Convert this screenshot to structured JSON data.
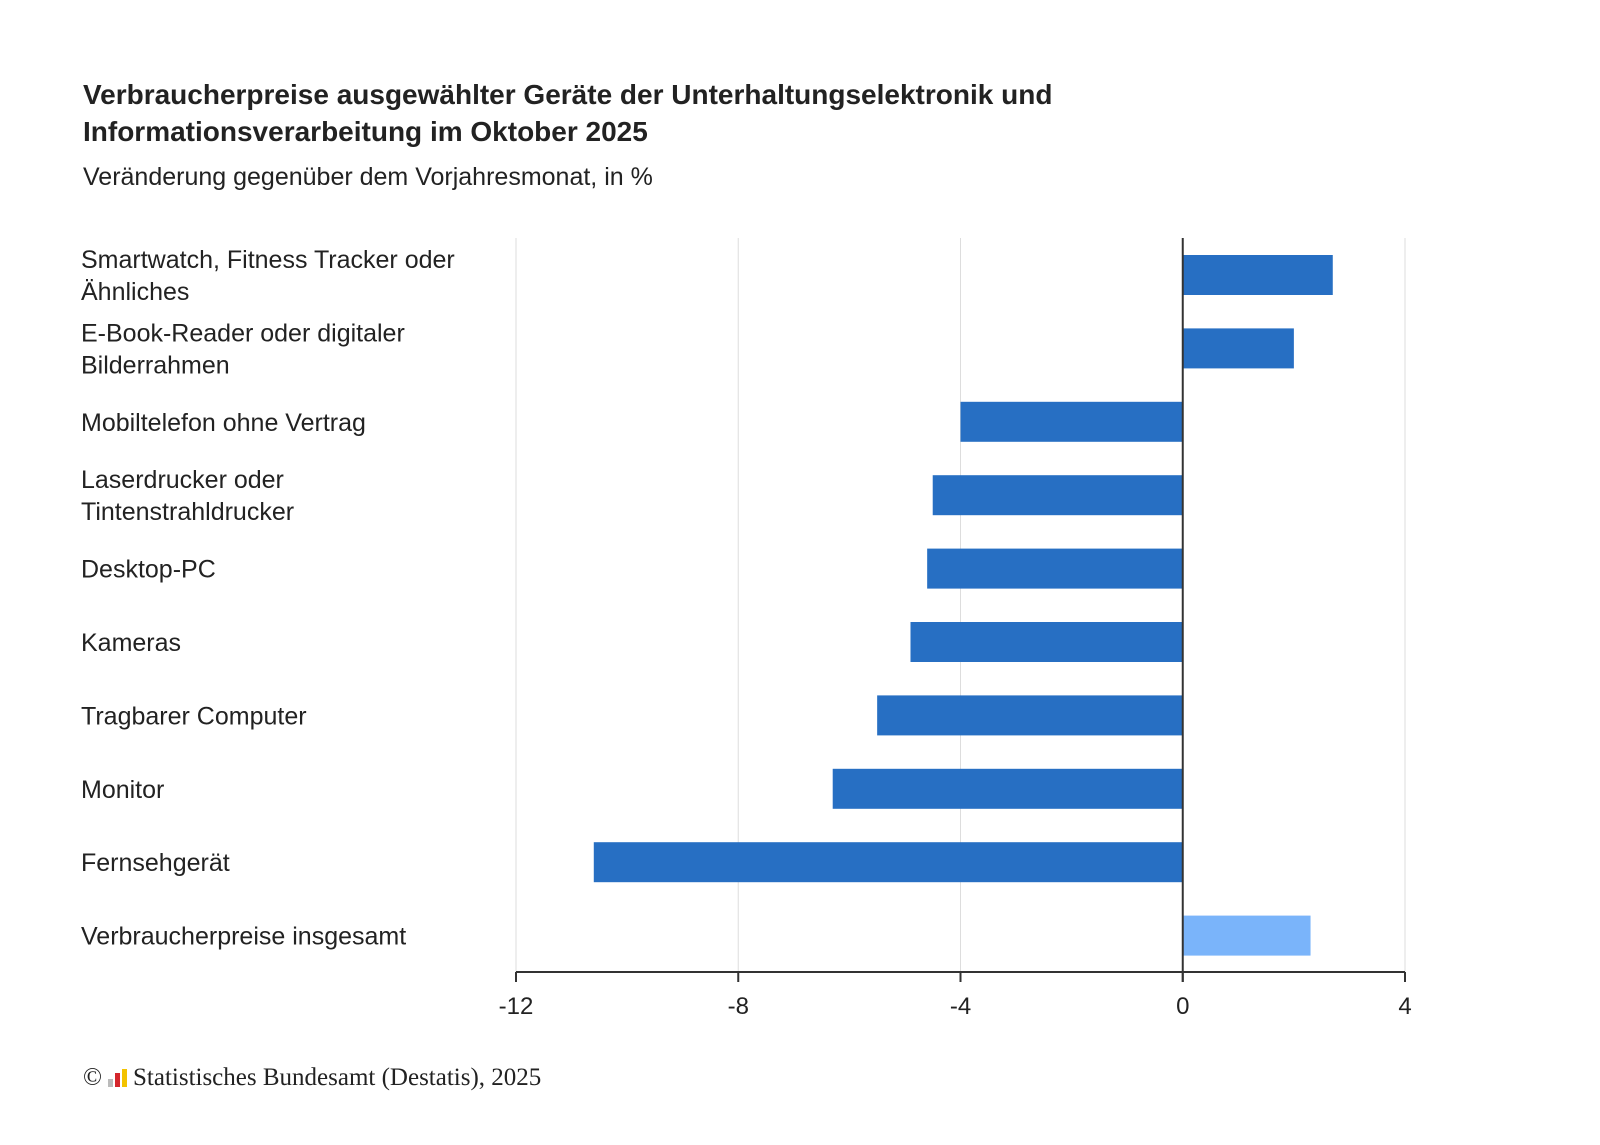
{
  "chart_data": {
    "type": "bar",
    "orientation": "horizontal",
    "title": "Verbraucherpreise ausgewählter Geräte der Unterhaltungselektronik und Informationsverarbeitung im Oktober 2025",
    "title_lines": [
      "Verbraucherpreise ausgewählter Geräte der Unterhaltungselektronik und",
      "Informationsverarbeitung im Oktober 2025"
    ],
    "subtitle": "Veränderung gegenüber dem Vorjahresmonat, in %",
    "xlabel": "",
    "ylabel": "",
    "xlim": [
      -12,
      4
    ],
    "xticks": [
      -12,
      -8,
      -4,
      0,
      4
    ],
    "grid": true,
    "categories": [
      [
        "Smartwatch, Fitness Tracker oder",
        "Ähnliches"
      ],
      [
        "E-Book-Reader oder digitaler",
        "Bilderrahmen"
      ],
      [
        "Mobiltelefon ohne Vertrag"
      ],
      [
        "Laserdrucker oder",
        "Tintenstrahldrucker"
      ],
      [
        "Desktop-PC"
      ],
      [
        "Kameras"
      ],
      [
        "Tragbarer Computer"
      ],
      [
        "Monitor"
      ],
      [
        "Fernsehgerät"
      ],
      [
        "Verbraucherpreise insgesamt"
      ]
    ],
    "values": [
      2.7,
      2.0,
      -4.0,
      -4.5,
      -4.6,
      -4.9,
      -5.5,
      -6.3,
      -10.6,
      2.3
    ],
    "highlight": [
      false,
      false,
      false,
      false,
      false,
      false,
      false,
      false,
      false,
      true
    ],
    "colors": {
      "bar": "#276fc3",
      "highlight": "#7ab4fa",
      "axis": "#333333",
      "grid": "#dddddd"
    }
  },
  "footer": {
    "copyright": "©",
    "source": "Statistisches Bundesamt (Destatis), 2025",
    "logo_colors": [
      "#bbbbbb",
      "#d4262c",
      "#f3c300"
    ]
  }
}
